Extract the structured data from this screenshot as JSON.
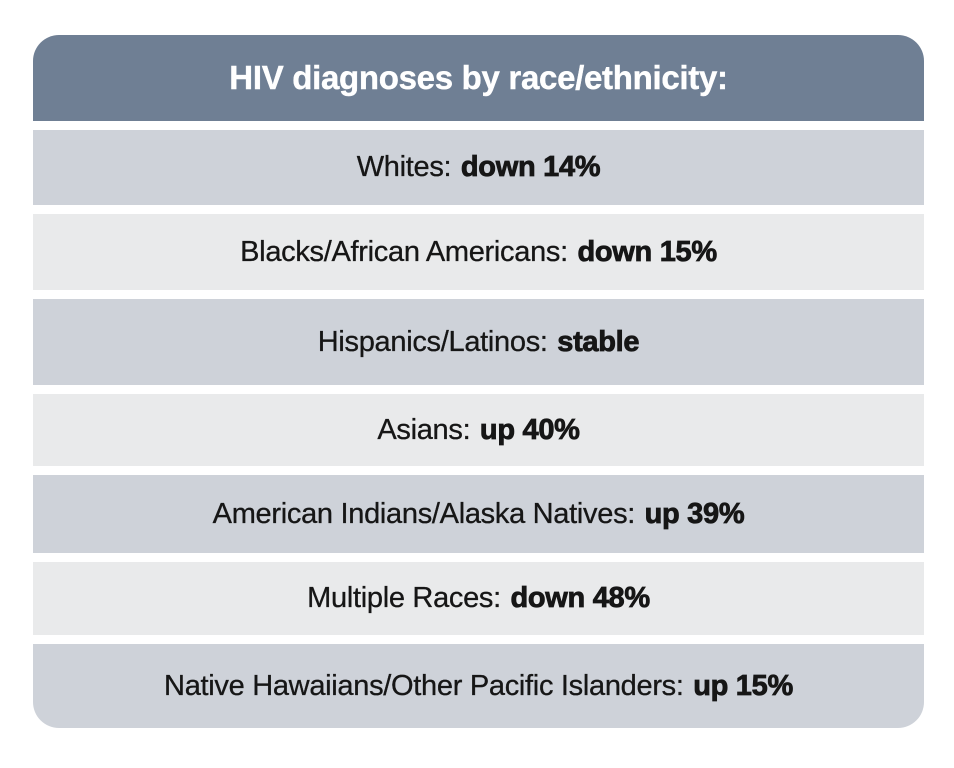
{
  "card": {
    "title": "HIV diagnoses by race/ethnicity:",
    "rows": [
      {
        "label": "Whites:",
        "value": "down 14%"
      },
      {
        "label": "Blacks/African Americans:",
        "value": "down 15%"
      },
      {
        "label": "Hispanics/Latinos:",
        "value": "stable"
      },
      {
        "label": "Asians:",
        "value": "up 40%"
      },
      {
        "label": "American Indians/Alaska Natives:",
        "value": "up 39%"
      },
      {
        "label": "Multiple Races:",
        "value": "down 48%"
      },
      {
        "label": "Native Hawaiians/Other Pacific Islanders:",
        "value": "up 15%"
      }
    ],
    "colors": {
      "page_bg": "#ffffff",
      "header_bg": "#6f7f94",
      "header_text": "#ffffff",
      "row_dark": "#ced2d9",
      "row_light": "#e9eaeb",
      "row_text": "#161616"
    }
  },
  "chart_data": {
    "type": "table",
    "title": "HIV diagnoses by race/ethnicity:",
    "categories": [
      "Whites",
      "Blacks/African Americans",
      "Hispanics/Latinos",
      "Asians",
      "American Indians/Alaska Natives",
      "Multiple Races",
      "Native Hawaiians/Other Pacific Islanders"
    ],
    "values": [
      "down 14%",
      "down 15%",
      "stable",
      "up 40%",
      "up 39%",
      "down 48%",
      "up 15%"
    ],
    "change_percent": [
      -14,
      -15,
      null,
      40,
      39,
      -48,
      15
    ],
    "layout": {
      "header_position": "top",
      "row_shading": "alternating",
      "text_align": "center"
    }
  }
}
